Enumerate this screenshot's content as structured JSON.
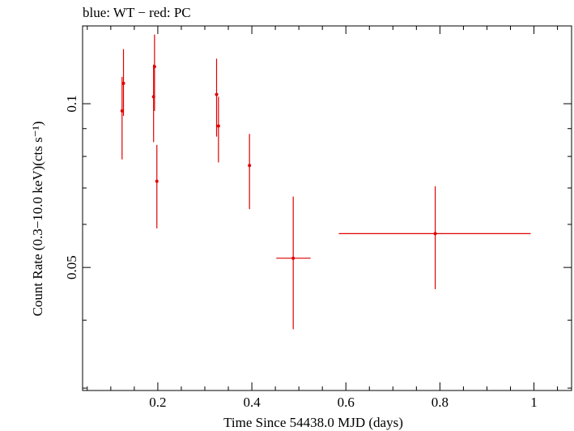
{
  "colors": {
    "pc": "#e00000",
    "axis": "#000000",
    "background": "#ffffff"
  },
  "chart_data": {
    "type": "scatter",
    "title": "blue: WT − red: PC",
    "xlabel": "Time Since 54438.0 MJD (days)",
    "ylabel": "Count Rate (0.3−10.0 keV)(cts s⁻¹)",
    "xlim": [
      0.04,
      1.08
    ],
    "ylim": [
      0.0297,
      0.139
    ],
    "yscale": "log",
    "grid": false,
    "x_ticks": [
      {
        "value": 0.2,
        "label": "0.2"
      },
      {
        "value": 0.4,
        "label": "0.4"
      },
      {
        "value": 0.6,
        "label": "0.6"
      },
      {
        "value": 0.8,
        "label": "0.8"
      },
      {
        "value": 1.0,
        "label": "1"
      }
    ],
    "x_minor_ticks": [
      0.05,
      0.1,
      0.15,
      0.25,
      0.3,
      0.35,
      0.45,
      0.5,
      0.55,
      0.65,
      0.7,
      0.75,
      0.85,
      0.9,
      0.95,
      1.05
    ],
    "y_ticks": [
      {
        "value": 0.05,
        "label": "0.05"
      },
      {
        "value": 0.1,
        "label": "0.1"
      }
    ],
    "y_minor_ticks": [
      0.03,
      0.04,
      0.06,
      0.07,
      0.08,
      0.09
    ],
    "series": [
      {
        "name": "PC",
        "color": "#e00000",
        "points": [
          {
            "x": 0.124,
            "y": 0.097,
            "xerr": [
              0.001,
              0.001
            ],
            "yerr": [
              0.079,
              0.112
            ]
          },
          {
            "x": 0.127,
            "y": 0.109,
            "xerr": [
              0.001,
              0.001
            ],
            "yerr": [
              0.095,
              0.126
            ]
          },
          {
            "x": 0.191,
            "y": 0.103,
            "xerr": [
              0.001,
              0.001
            ],
            "yerr": [
              0.085,
              0.118
            ]
          },
          {
            "x": 0.193,
            "y": 0.117,
            "xerr": [
              0.001,
              0.001
            ],
            "yerr": [
              0.097,
              0.134
            ]
          },
          {
            "x": 0.198,
            "y": 0.072,
            "xerr": [
              0.001,
              0.001
            ],
            "yerr": [
              0.059,
              0.084
            ]
          },
          {
            "x": 0.325,
            "y": 0.104,
            "xerr": [
              0.001,
              0.001
            ],
            "yerr": [
              0.087,
              0.121
            ]
          },
          {
            "x": 0.329,
            "y": 0.091,
            "xerr": [
              0.001,
              0.001
            ],
            "yerr": [
              0.078,
              0.103
            ]
          },
          {
            "x": 0.395,
            "y": 0.077,
            "xerr": [
              0.001,
              0.001
            ],
            "yerr": [
              0.064,
              0.088
            ]
          },
          {
            "x": 0.488,
            "y": 0.052,
            "xerr": [
              0.452,
              0.525
            ],
            "yerr": [
              0.0385,
              0.0675
            ]
          },
          {
            "x": 0.79,
            "y": 0.0577,
            "xerr": [
              0.585,
              0.993
            ],
            "yerr": [
              0.0456,
              0.0705
            ]
          }
        ]
      }
    ]
  }
}
